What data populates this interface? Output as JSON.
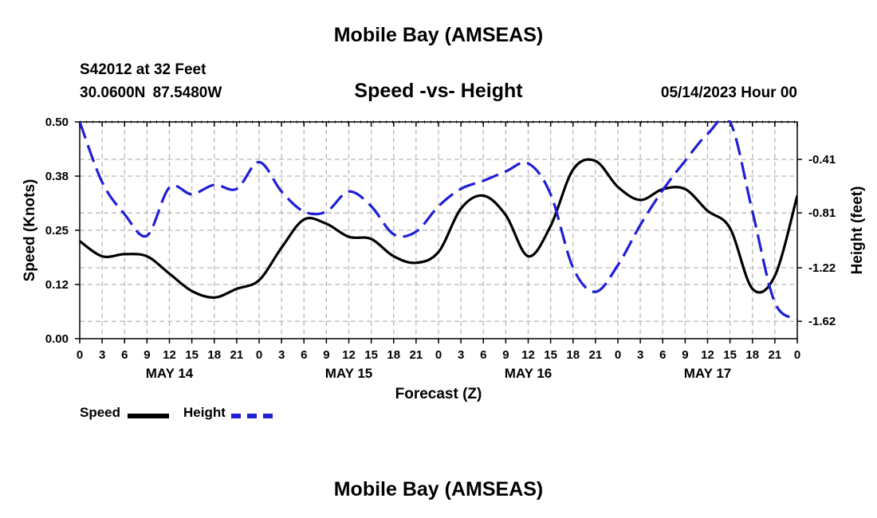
{
  "header": {
    "title": "Mobile Bay (AMSEAS)",
    "station": "S42012 at 32 Feet",
    "coordinates": "30.0600N  87.5480W",
    "subtitle": "Speed -vs- Height",
    "datetime": "05/14/2023 Hour 00",
    "footer_title": "Mobile Bay (AMSEAS)"
  },
  "legend": {
    "speed_label": "Speed",
    "height_label": "Height"
  },
  "chart_data": {
    "type": "line",
    "title": "Speed -vs- Height",
    "xlabel": "Forecast (Z)",
    "ylabel": "Speed (Knots)",
    "ylabel_right": "Height (feet)",
    "xlim": [
      0,
      96
    ],
    "ylim": [
      0,
      0.5
    ],
    "ylim_right": [
      -1.75,
      -0.13
    ],
    "grid": true,
    "x_ticks": [
      0,
      3,
      6,
      9,
      12,
      15,
      18,
      21,
      24,
      27,
      30,
      33,
      36,
      39,
      42,
      45,
      48,
      51,
      54,
      57,
      60,
      63,
      66,
      69,
      72,
      75,
      78,
      81,
      84,
      87,
      90,
      93,
      96
    ],
    "x_tick_labels": [
      "0",
      "3",
      "6",
      "9",
      "12",
      "15",
      "18",
      "21",
      "0",
      "3",
      "6",
      "9",
      "12",
      "15",
      "18",
      "21",
      "0",
      "3",
      "6",
      "9",
      "12",
      "15",
      "18",
      "21",
      "0",
      "3",
      "6",
      "9",
      "12",
      "15",
      "18",
      "21",
      "0"
    ],
    "day_labels": [
      {
        "x": 12,
        "label": "MAY 14"
      },
      {
        "x": 36,
        "label": "MAY 15"
      },
      {
        "x": 60,
        "label": "MAY 16"
      },
      {
        "x": 84,
        "label": "MAY 17"
      }
    ],
    "y_ticks": [
      0,
      0.125,
      0.25,
      0.375,
      0.5
    ],
    "y_tick_labels": [
      "0.00",
      "0.12",
      "0.25",
      "0.38",
      "0.50"
    ],
    "y_ticks_right": [
      -0.41,
      -0.81,
      -1.22,
      -1.62
    ],
    "y_tick_labels_right": [
      "-0.41",
      "-0.81",
      "-1.22",
      "-1.62"
    ],
    "series": [
      {
        "name": "Speed",
        "axis": "left",
        "color": "#000000",
        "style": "solid",
        "x": [
          0,
          3,
          6,
          9,
          12,
          15,
          18,
          21,
          24,
          27,
          30,
          33,
          36,
          39,
          42,
          45,
          48,
          51,
          54,
          57,
          60,
          63,
          66,
          69,
          72,
          75,
          78,
          81,
          84,
          87,
          90,
          93,
          96
        ],
        "values": [
          0.225,
          0.19,
          0.195,
          0.19,
          0.15,
          0.11,
          0.095,
          0.115,
          0.135,
          0.21,
          0.275,
          0.265,
          0.235,
          0.23,
          0.19,
          0.175,
          0.2,
          0.3,
          0.33,
          0.285,
          0.19,
          0.26,
          0.39,
          0.41,
          0.35,
          0.32,
          0.345,
          0.345,
          0.295,
          0.255,
          0.115,
          0.145,
          0.33
        ]
      },
      {
        "name": "Height",
        "axis": "right",
        "color": "#1f1fd6",
        "style": "dashed",
        "x": [
          0,
          3,
          6,
          9,
          12,
          15,
          18,
          21,
          24,
          27,
          30,
          33,
          36,
          39,
          42,
          45,
          48,
          51,
          54,
          57,
          60,
          63,
          66,
          69,
          72,
          75,
          78,
          81,
          84,
          87,
          90,
          93,
          96
        ],
        "values": [
          -0.13,
          -0.58,
          -0.82,
          -0.98,
          -0.62,
          -0.67,
          -0.6,
          -0.63,
          -0.43,
          -0.65,
          -0.8,
          -0.8,
          -0.65,
          -0.76,
          -0.97,
          -0.95,
          -0.76,
          -0.63,
          -0.57,
          -0.5,
          -0.44,
          -0.67,
          -1.22,
          -1.4,
          -1.2,
          -0.9,
          -0.64,
          -0.42,
          -0.22,
          -0.13,
          -0.8,
          -1.48,
          -1.6
        ]
      }
    ]
  }
}
